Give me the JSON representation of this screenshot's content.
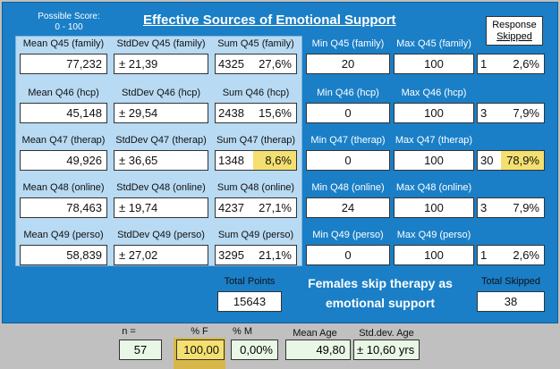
{
  "header": {
    "possible_score_line1": "Possible Score:",
    "possible_score_line2": "0 - 100",
    "title": "Effective Sources of Emotional Support",
    "response_line1": "Response",
    "response_line2": "Skipped"
  },
  "rows": [
    {
      "mean_label": "Mean Q45 (family)",
      "mean": "77,232",
      "std_label": "StdDev Q45 (family)",
      "std": "± 21,39",
      "sum_label": "Sum Q45 (family)",
      "sum": "4325",
      "sum_pct": "27,6%",
      "min_label": "Min Q45 (family)",
      "min": "20",
      "max_label": "Max Q45 (family)",
      "max": "100",
      "skip_n": "1",
      "skip_pct": "2,6%"
    },
    {
      "mean_label": "Mean Q46 (hcp)",
      "mean": "45,148",
      "std_label": "StdDev Q46 (hcp)",
      "std": "± 29,54",
      "sum_label": "Sum Q46 (hcp)",
      "sum": "2438",
      "sum_pct": "15,6%",
      "min_label": "Min Q46 (hcp)",
      "min": "0",
      "max_label": "Max Q46 (hcp)",
      "max": "100",
      "skip_n": "3",
      "skip_pct": "7,9%"
    },
    {
      "mean_label": "Mean Q47 (therap)",
      "mean": "49,926",
      "std_label": "StdDev Q47 (therap)",
      "std": "± 36,65",
      "sum_label": "Sum Q47 (therap)",
      "sum": "1348",
      "sum_pct": "8,6%",
      "min_label": "Min Q47 (therap)",
      "min": "0",
      "max_label": "Max Q47 (therap)",
      "max": "100",
      "skip_n": "30",
      "skip_pct": "78,9%"
    },
    {
      "mean_label": "Mean Q48 (online)",
      "mean": "78,463",
      "std_label": "StdDev Q48 (online)",
      "std": "± 19,74",
      "sum_label": "Sum Q48 (online)",
      "sum": "4237",
      "sum_pct": "27,1%",
      "min_label": "Min Q48 (online)",
      "min": "24",
      "max_label": "Max Q48 (online)",
      "max": "100",
      "skip_n": "3",
      "skip_pct": "7,9%"
    },
    {
      "mean_label": "Mean Q49 (perso)",
      "mean": "58,839",
      "std_label": "StdDev Q49 (perso)",
      "std": "± 27,02",
      "sum_label": "Sum Q49 (perso)",
      "sum": "3295",
      "sum_pct": "21,1%",
      "min_label": "Min Q49 (perso)",
      "min": "0",
      "max_label": "Max Q49 (perso)",
      "max": "100",
      "skip_n": "1",
      "skip_pct": "2,6%"
    }
  ],
  "totals": {
    "points_label": "Total Points",
    "points": "15643",
    "note_line1": "Females skip therapy as",
    "note_line2": "emotional support",
    "skipped_label": "Total Skipped",
    "skipped": "38"
  },
  "bottom": {
    "n_label": "n =",
    "n": "57",
    "pct_f_label": "% F",
    "pct_f": "100,00",
    "pct_m_label": "% M",
    "pct_m": "0,00%",
    "mean_age_label": "Mean Age",
    "mean_age": "49,80",
    "std_age_label": "Std.dev. Age",
    "std_age": "± 10,60 yrs"
  },
  "colors": {
    "panel": "#1a7fc7",
    "light_panel": "#b8daf3",
    "highlight": "#f4e070"
  }
}
